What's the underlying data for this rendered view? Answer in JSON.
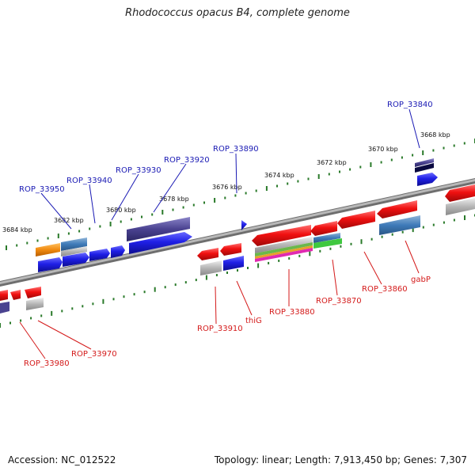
{
  "title": "Rhodococcus opacus B4, complete genome",
  "footer": {
    "accession": "Accession: NC_012522",
    "summary": "Topology: linear; Length: 7,913,450 bp; Genes: 7,307"
  },
  "colors": {
    "forward": "#2020e0",
    "reverse": "#e01818",
    "tick": "#2a7a2a",
    "backbone": "#888888",
    "label_top": "#1a1ab4",
    "label_bottom": "#d41a1a"
  },
  "scale": {
    "ticks": [
      "3684 kbp",
      "3682 kbp",
      "3680 kbp",
      "3678 kbp",
      "3676 kbp",
      "3674 kbp",
      "3672 kbp",
      "3670 kbp",
      "3668 kbp"
    ]
  },
  "labels_top": [
    "ROP_33950",
    "ROP_33940",
    "ROP_33930",
    "ROP_33920",
    "ROP_33890",
    "ROP_33840"
  ],
  "labels_bottom": [
    "ROP_33980",
    "ROP_33970",
    "ROP_33910",
    "thiG",
    "ROP_33880",
    "ROP_33870",
    "ROP_33860",
    "gabP"
  ]
}
